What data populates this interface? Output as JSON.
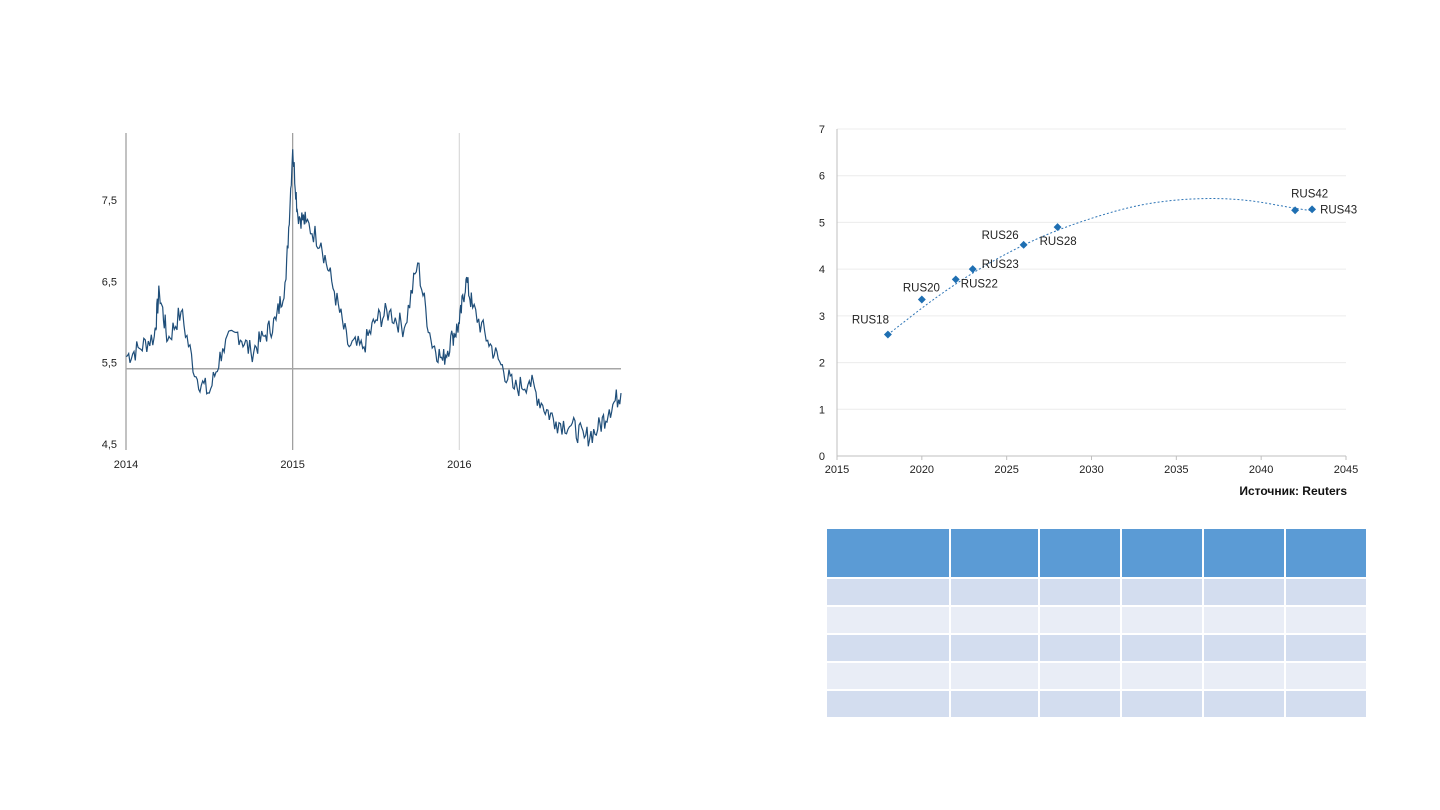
{
  "chart_data": [
    {
      "type": "line",
      "x_tick_labels": [
        "2014",
        "2015",
        "2016"
      ],
      "y_tick_labels": [
        "4,5",
        "5,5",
        "6,5",
        "7,5"
      ],
      "x_range": [
        2014.0,
        2016.97
      ],
      "ylim": [
        4.5,
        8.4
      ],
      "reference_line_y": 5.5,
      "series_color": "#1f4e79",
      "x": [
        2014.0,
        2014.08,
        2014.17,
        2014.2,
        2014.25,
        2014.33,
        2014.42,
        2014.5,
        2014.58,
        2014.67,
        2014.75,
        2014.83,
        2014.9,
        2014.96,
        2015.0,
        2015.03,
        2015.08,
        2015.17,
        2015.25,
        2015.33,
        2015.42,
        2015.5,
        2015.58,
        2015.67,
        2015.75,
        2015.83,
        2015.9,
        2015.96,
        2016.0,
        2016.04,
        2016.08,
        2016.17,
        2016.25,
        2016.33,
        2016.42,
        2016.5,
        2016.58,
        2016.67,
        2016.75,
        2016.83,
        2016.9,
        2016.97
      ],
      "y": [
        5.65,
        5.75,
        5.9,
        6.45,
        5.85,
        6.2,
        5.4,
        5.2,
        5.75,
        5.95,
        5.7,
        5.9,
        6.1,
        6.6,
        8.2,
        7.4,
        7.3,
        7.05,
        6.45,
        5.8,
        5.75,
        6.1,
        6.2,
        6.0,
        6.8,
        5.85,
        5.6,
        5.9,
        6.05,
        6.6,
        6.25,
        5.85,
        5.55,
        5.25,
        5.35,
        5.05,
        4.85,
        4.8,
        4.65,
        4.75,
        5.0,
        5.2
      ]
    },
    {
      "type": "scatter",
      "x_tick_labels": [
        "2015",
        "2020",
        "2025",
        "2030",
        "2035",
        "2040",
        "2045"
      ],
      "y_tick_labels": [
        "0",
        "1",
        "2",
        "3",
        "4",
        "5",
        "6",
        "7"
      ],
      "xlim": [
        2015,
        2045
      ],
      "ylim": [
        0,
        7
      ],
      "points": [
        {
          "label": "RUS18",
          "x": 2018,
          "y": 2.6
        },
        {
          "label": "RUS20",
          "x": 2020,
          "y": 3.35
        },
        {
          "label": "RUS22",
          "x": 2022,
          "y": 3.78
        },
        {
          "label": "RUS23",
          "x": 2023,
          "y": 4.0
        },
        {
          "label": "RUS26",
          "x": 2026,
          "y": 4.52
        },
        {
          "label": "RUS28",
          "x": 2028,
          "y": 4.9
        },
        {
          "label": "RUS42",
          "x": 2042,
          "y": 5.26
        },
        {
          "label": "RUS43",
          "x": 2043,
          "y": 5.28
        }
      ],
      "trendline": {
        "type": "dotted polynomial",
        "x": [
          2018,
          2021,
          2024,
          2027,
          2030,
          2033,
          2036,
          2039,
          2042,
          2043
        ],
        "y": [
          2.6,
          3.45,
          4.15,
          4.7,
          5.1,
          5.4,
          5.52,
          5.5,
          5.3,
          5.25
        ]
      },
      "marker_color": "#1f6fb2",
      "source": "Источник: Reuters"
    }
  ],
  "table": {
    "columns": 6,
    "body_rows": 5,
    "header_color": "#5b9bd5",
    "row_colors": [
      "#d3ddef",
      "#e9edf6"
    ]
  }
}
